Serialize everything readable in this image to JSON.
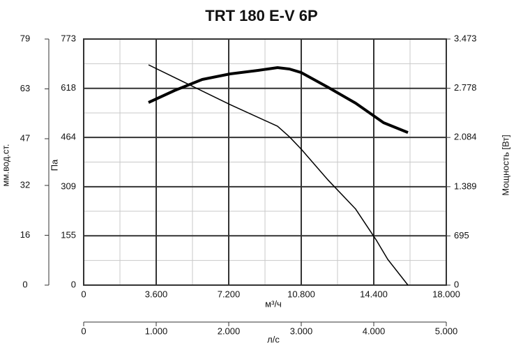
{
  "chart_data": {
    "type": "line",
    "title": "TRT 180 E-V 6P",
    "xlabel": "м³/ч",
    "ylabel": "Па",
    "y2label": "Мощность [Вт]",
    "y3label": "мм.вод.ст.",
    "x2label": "л/с",
    "xlim": [
      0,
      18000
    ],
    "xticks": [
      0,
      {
        "value": 3600,
        "label": "3.600"
      },
      {
        "value": 7200,
        "label": "7.200"
      },
      {
        "value": 10800,
        "label": "10.800"
      },
      {
        "value": 14400,
        "label": "14.400"
      },
      {
        "value": 18000,
        "label": "18.000"
      }
    ],
    "ylim": [
      0,
      773
    ],
    "yticks": [
      0,
      155,
      309,
      464,
      618,
      773
    ],
    "y2lim": [
      0,
      3473
    ],
    "y2ticks": [
      0,
      695,
      {
        "value": 1389,
        "label": "1.389"
      },
      {
        "value": 2084,
        "label": "2.084"
      },
      {
        "value": 2778,
        "label": "2.778"
      },
      {
        "value": 3473,
        "label": "3.473"
      }
    ],
    "y3lim": [
      0,
      79
    ],
    "y3ticks": [
      0,
      16,
      32,
      47,
      63,
      79
    ],
    "x2lim": [
      0,
      5000
    ],
    "x2ticks": [
      0,
      {
        "value": 1000,
        "label": "1.000"
      },
      {
        "value": 2000,
        "label": "2.000"
      },
      {
        "value": 3000,
        "label": "3.000"
      },
      {
        "value": 4000,
        "label": "4.000"
      },
      {
        "value": 5000,
        "label": "5.000"
      }
    ],
    "grid": true,
    "series": [
      {
        "color": "#000000",
        "width": 1.5,
        "axis": "y",
        "x": [
          3219,
          7269,
          9623,
          10212,
          10800,
          12115,
          13500,
          14538,
          15092,
          16096
        ],
        "values": [
          692,
          567,
          499,
          466,
          427,
          331,
          239,
          140,
          81,
          0
        ]
      },
      {
        "color": "#000000",
        "width": 4,
        "axis": "y2",
        "x": [
          3219,
          4500,
          5885,
          7269,
          8654,
          9623,
          10212,
          10800,
          12115,
          13500,
          14885,
          16096
        ],
        "values": [
          2578,
          2745,
          2902,
          2981,
          3030,
          3070,
          3050,
          3000,
          2794,
          2568,
          2292,
          2154
        ]
      }
    ]
  }
}
